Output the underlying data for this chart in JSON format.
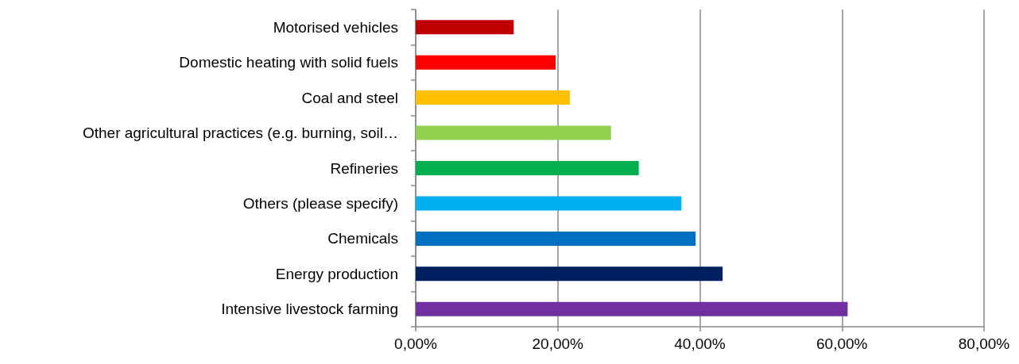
{
  "chart_data": {
    "type": "bar",
    "orientation": "horizontal",
    "categories": [
      "Motorised vehicles",
      "Domestic heating with solid fuels",
      "Coal and steel",
      "Other agricultural practices (e.g. burning, soil…",
      "Refineries",
      "Others (please specify)",
      "Chemicals",
      "Energy production",
      "Intensive livestock farming"
    ],
    "values": [
      13.8,
      19.7,
      21.7,
      27.5,
      31.4,
      37.4,
      39.4,
      43.2,
      60.8
    ],
    "colors": [
      "#c00000",
      "#ff0000",
      "#ffc000",
      "#92d050",
      "#00b050",
      "#00b0f0",
      "#0070c0",
      "#002060",
      "#7030a0"
    ],
    "xlim": [
      0,
      80
    ],
    "xticks": [
      {
        "value": 0,
        "label": "0,00%"
      },
      {
        "value": 20,
        "label": "20,00%"
      },
      {
        "value": 40,
        "label": "40,00%"
      },
      {
        "value": 60,
        "label": "60,00%"
      },
      {
        "value": 80,
        "label": "80,00%"
      }
    ],
    "grid": "x"
  }
}
